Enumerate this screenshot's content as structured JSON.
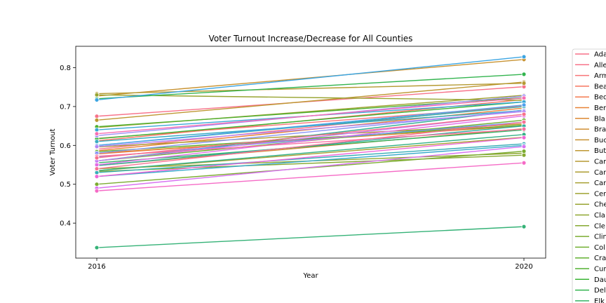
{
  "chart_data": {
    "type": "line",
    "title": "Voter Turnout Increase/Decrease for All Counties",
    "xlabel": "Year",
    "ylabel": "Voter Turnout",
    "x": [
      "2016",
      "2020"
    ],
    "ylim": [
      0.31,
      0.855
    ],
    "yticks": [
      "0.4",
      "0.5",
      "0.6",
      "0.7",
      "0.8"
    ],
    "grid": false,
    "legend_position": "right",
    "series": [
      {
        "name": "Ada",
        "color": "#f77189",
        "values": [
          0.59,
          0.703
        ]
      },
      {
        "name": "Alle",
        "color": "#f7738a",
        "values": [
          0.675,
          0.751
        ]
      },
      {
        "name": "Arm",
        "color": "#f77579",
        "values": [
          0.618,
          0.7
        ]
      },
      {
        "name": "Bea",
        "color": "#f7765f",
        "values": [
          0.612,
          0.718
        ]
      },
      {
        "name": "Bed",
        "color": "#f47a4f",
        "values": [
          0.578,
          0.656
        ]
      },
      {
        "name": "Ber",
        "color": "#e88135",
        "values": [
          0.586,
          0.696
        ]
      },
      {
        "name": "Bla",
        "color": "#dc8932",
        "values": [
          0.58,
          0.65
        ]
      },
      {
        "name": "Bra",
        "color": "#d18e32",
        "values": [
          0.548,
          0.643
        ]
      },
      {
        "name": "Buc",
        "color": "#c89332",
        "values": [
          0.727,
          0.821
        ]
      },
      {
        "name": "But",
        "color": "#be9732",
        "values": [
          0.665,
          0.763
        ]
      },
      {
        "name": "Car",
        "color": "#b59a32",
        "values": [
          0.733,
          0.76
        ]
      },
      {
        "name": "Car",
        "color": "#ae9d31",
        "values": [
          0.596,
          0.655
        ]
      },
      {
        "name": "Car",
        "color": "#a69f31",
        "values": [
          0.535,
          0.621
        ]
      },
      {
        "name": "Cen",
        "color": "#9fa231",
        "values": [
          0.646,
          0.729
        ]
      },
      {
        "name": "Che",
        "color": "#98a431",
        "values": [
          0.73,
          0.716
        ]
      },
      {
        "name": "Cla",
        "color": "#8fa731",
        "values": [
          0.54,
          0.58
        ]
      },
      {
        "name": "Cle",
        "color": "#86a931",
        "values": [
          0.533,
          0.575
        ]
      },
      {
        "name": "Clin",
        "color": "#7cac31",
        "values": [
          0.5,
          0.585
        ]
      },
      {
        "name": "Col",
        "color": "#70af31",
        "values": [
          0.56,
          0.665
        ]
      },
      {
        "name": "Cra",
        "color": "#62b131",
        "values": [
          0.584,
          0.652
        ]
      },
      {
        "name": "Cum",
        "color": "#50b131",
        "values": [
          0.648,
          0.723
        ]
      },
      {
        "name": "Dau",
        "color": "#3ab435",
        "values": [
          0.617,
          0.712
        ]
      },
      {
        "name": "Del",
        "color": "#33b44f",
        "values": [
          0.72,
          0.783
        ]
      },
      {
        "name": "Elk",
        "color": "#34b365",
        "values": [
          0.555,
          0.64
        ]
      },
      {
        "name": "",
        "color": "#35b277",
        "values": [
          0.337,
          0.391
        ]
      },
      {
        "name": "",
        "color": "#35b187",
        "values": [
          0.535,
          0.628
        ]
      },
      {
        "name": "",
        "color": "#36b094",
        "values": [
          0.56,
          0.691
        ]
      },
      {
        "name": "",
        "color": "#36afa0",
        "values": [
          0.548,
          0.65
        ]
      },
      {
        "name": "",
        "color": "#37aeab",
        "values": [
          0.6,
          0.7
        ]
      },
      {
        "name": "",
        "color": "#37adb6",
        "values": [
          0.53,
          0.604
        ]
      },
      {
        "name": "",
        "color": "#38acc0",
        "values": [
          0.61,
          0.69
        ]
      },
      {
        "name": "",
        "color": "#39aacb",
        "values": [
          0.52,
          0.6
        ]
      },
      {
        "name": "",
        "color": "#3aa8d6",
        "values": [
          0.64,
          0.712
        ]
      },
      {
        "name": "",
        "color": "#3ca5e2",
        "values": [
          0.717,
          0.828
        ]
      },
      {
        "name": "",
        "color": "#4fa1ec",
        "values": [
          0.6,
          0.704
        ]
      },
      {
        "name": "",
        "color": "#6e9bf4",
        "values": [
          0.57,
          0.66
        ]
      },
      {
        "name": "",
        "color": "#8a95f4",
        "values": [
          0.58,
          0.69
        ]
      },
      {
        "name": "",
        "color": "#9f8ff4",
        "values": [
          0.625,
          0.727
        ]
      },
      {
        "name": "",
        "color": "#b286f4",
        "values": [
          0.597,
          0.687
        ]
      },
      {
        "name": "",
        "color": "#c57cf4",
        "values": [
          0.56,
          0.68
        ]
      },
      {
        "name": "",
        "color": "#d873f2",
        "values": [
          0.49,
          0.597
        ]
      },
      {
        "name": "",
        "color": "#e36ce6",
        "values": [
          0.55,
          0.676
        ]
      },
      {
        "name": "",
        "color": "#ee67d7",
        "values": [
          0.52,
          0.62
        ]
      },
      {
        "name": "",
        "color": "#f56bc6",
        "values": [
          0.483,
          0.555
        ]
      },
      {
        "name": "",
        "color": "#f66fb4",
        "values": [
          0.63,
          0.722
        ]
      },
      {
        "name": "",
        "color": "#f772a3",
        "values": [
          0.572,
          0.642
        ]
      },
      {
        "name": "",
        "color": "#f77296",
        "values": [
          0.54,
          0.66
        ]
      },
      {
        "name": "",
        "color": "#f7718d",
        "values": [
          0.568,
          0.68
        ]
      }
    ]
  }
}
